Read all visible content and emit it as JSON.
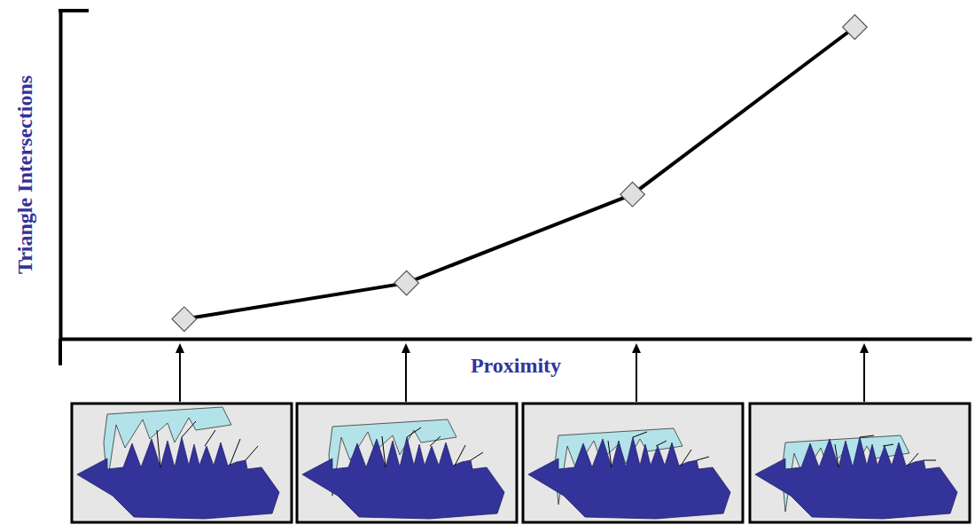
{
  "chart_data": {
    "type": "line",
    "x_label": "Proximity",
    "y_label": "Triangle Intersections",
    "x": [
      13.6,
      38,
      62.8,
      87.2
    ],
    "series": [
      {
        "values": [
          6,
          17,
          44,
          95
        ],
        "color": "#000000",
        "marker": "diamond"
      }
    ],
    "xlim": [
      0,
      100
    ],
    "ylim": [
      0,
      100
    ],
    "tick_labels": false
  }
}
